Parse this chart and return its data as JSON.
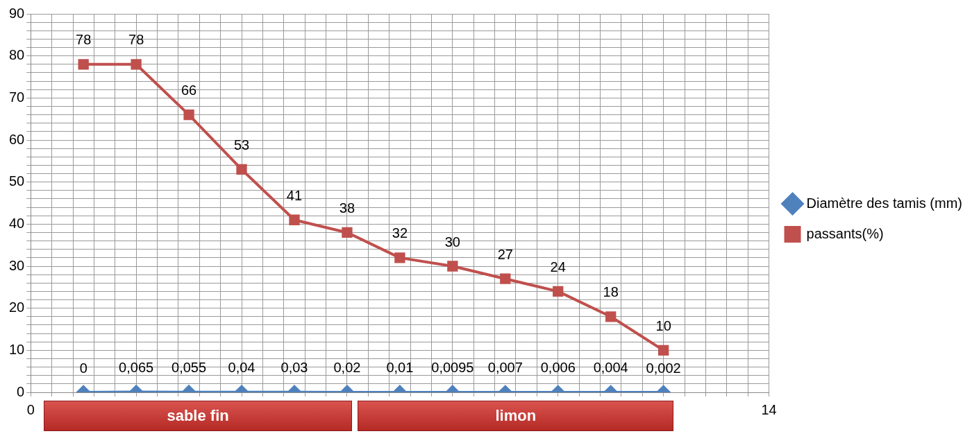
{
  "chart_data": {
    "type": "line",
    "x": [
      1,
      2,
      3,
      4,
      5,
      6,
      7,
      8,
      9,
      10,
      11,
      12
    ],
    "series": [
      {
        "name": "Diamètre des tamis (mm)",
        "color": "#4f81bd",
        "marker": "diamond",
        "values": [
          0,
          0.065,
          0.055,
          0.04,
          0.03,
          0.02,
          0.01,
          0.0095,
          0.007,
          0.006,
          0.004,
          0.002
        ],
        "value_labels": [
          "0",
          "0,065",
          "0,055",
          "0,04",
          "0,03",
          "0,02",
          "0,01",
          "0,0095",
          "0,007",
          "0,006",
          "0,004",
          "0,002"
        ]
      },
      {
        "name": "passants(%)",
        "color": "#c0504d",
        "marker": "square",
        "values": [
          78,
          78,
          66,
          53,
          41,
          38,
          32,
          30,
          27,
          24,
          18,
          10
        ],
        "value_labels": [
          "78",
          "78",
          "66",
          "53",
          "41",
          "38",
          "32",
          "30",
          "27",
          "24",
          "18",
          "10"
        ]
      }
    ],
    "xlim": [
      0,
      14
    ],
    "xticks": [
      0,
      {
        "value": 0.4,
        "label": null
      },
      {
        "value": 0.8,
        "label": null
      },
      {
        "value": 1.2,
        "label": null
      },
      {
        "value": 1.6,
        "label": null
      },
      {
        "value": 2,
        "label": null
      },
      {
        "value": 2.4,
        "label": null
      },
      {
        "value": 2.8,
        "label": null
      },
      {
        "value": 3.2,
        "label": null
      },
      {
        "value": 3.6,
        "label": null
      },
      {
        "value": 4,
        "label": null
      },
      {
        "value": 4.4,
        "label": null
      },
      {
        "value": 4.8,
        "label": null
      },
      {
        "value": 5.2,
        "label": null
      },
      {
        "value": 5.6,
        "label": null
      },
      {
        "value": 6,
        "label": null
      },
      {
        "value": 6.4,
        "label": null
      },
      {
        "value": 6.8,
        "label": null
      },
      {
        "value": 7.2,
        "label": null
      },
      {
        "value": 7.6,
        "label": null
      },
      {
        "value": 8,
        "label": null
      },
      {
        "value": 8.4,
        "label": null
      },
      {
        "value": 8.8,
        "label": null
      },
      {
        "value": 9.2,
        "label": null
      },
      {
        "value": 9.6,
        "label": null
      },
      {
        "value": 10,
        "label": null
      },
      {
        "value": 10.4,
        "label": null
      },
      {
        "value": 10.8,
        "label": null
      },
      {
        "value": 11.2,
        "label": null
      },
      {
        "value": 11.6,
        "label": null
      },
      {
        "value": 12,
        "label": null
      },
      {
        "value": 12.4,
        "label": null
      },
      {
        "value": 12.8,
        "label": null
      },
      {
        "value": 13.2,
        "label": null
      },
      {
        "value": 13.6,
        "label": null
      },
      14
    ],
    "ylim": [
      0,
      90
    ],
    "yticks": [
      0,
      {
        "value": 2,
        "label": null
      },
      {
        "value": 4,
        "label": null
      },
      {
        "value": 6,
        "label": null
      },
      {
        "value": 8,
        "label": null
      },
      10,
      {
        "value": 12,
        "label": null
      },
      {
        "value": 14,
        "label": null
      },
      {
        "value": 16,
        "label": null
      },
      {
        "value": 18,
        "label": null
      },
      20,
      {
        "value": 22,
        "label": null
      },
      {
        "value": 24,
        "label": null
      },
      {
        "value": 26,
        "label": null
      },
      {
        "value": 28,
        "label": null
      },
      30,
      {
        "value": 32,
        "label": null
      },
      {
        "value": 34,
        "label": null
      },
      {
        "value": 36,
        "label": null
      },
      {
        "value": 38,
        "label": null
      },
      40,
      {
        "value": 42,
        "label": null
      },
      {
        "value": 44,
        "label": null
      },
      {
        "value": 46,
        "label": null
      },
      {
        "value": 48,
        "label": null
      },
      50,
      {
        "value": 52,
        "label": null
      },
      {
        "value": 54,
        "label": null
      },
      {
        "value": 56,
        "label": null
      },
      {
        "value": 58,
        "label": null
      },
      60,
      {
        "value": 62,
        "label": null
      },
      {
        "value": 64,
        "label": null
      },
      {
        "value": 66,
        "label": null
      },
      {
        "value": 68,
        "label": null
      },
      70,
      {
        "value": 72,
        "label": null
      },
      {
        "value": 74,
        "label": null
      },
      {
        "value": 76,
        "label": null
      },
      {
        "value": 78,
        "label": null
      },
      80,
      {
        "value": 82,
        "label": null
      },
      {
        "value": 84,
        "label": null
      },
      {
        "value": 86,
        "label": null
      },
      {
        "value": 88,
        "label": null
      },
      90
    ],
    "annotations": [
      "sable fin",
      "limon"
    ],
    "grid": true,
    "legend": "right",
    "line_style": "solid"
  }
}
